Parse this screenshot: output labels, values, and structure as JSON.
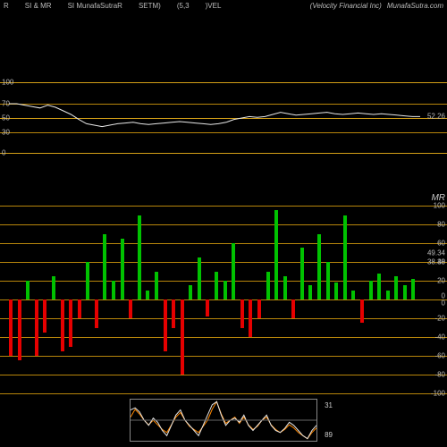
{
  "header": {
    "left": [
      "R",
      "SI & MR",
      "SI MunafaSutraR",
      "SETM)",
      "(5,3",
      ")VEL"
    ],
    "right": [
      "(Velocity Financial Inc)",
      "MunafaSutra.com"
    ]
  },
  "rsi": {
    "ylim": [
      0,
      100
    ],
    "ticks": [
      0,
      30,
      50,
      70,
      100
    ],
    "value_right": "52.26",
    "line_color": "#e8e8e8",
    "horizon_colors": {
      "outer": "#d4a017",
      "mid": "#b8860b"
    },
    "points": [
      70,
      70,
      68,
      66,
      64,
      68,
      65,
      60,
      55,
      48,
      42,
      40,
      38,
      40,
      42,
      43,
      44,
      42,
      41,
      42,
      43,
      44,
      45,
      44,
      43,
      42,
      41,
      42,
      44,
      48,
      50,
      52,
      51,
      52,
      55,
      58,
      56,
      54,
      55,
      56,
      57,
      58,
      56,
      55,
      56,
      57,
      56,
      55,
      56,
      55,
      54,
      53,
      52,
      52
    ]
  },
  "mr": {
    "label": "MR",
    "value_right_top": "49.34",
    "value_right_btm": "38.38",
    "ylim": [
      -100,
      100
    ],
    "ticks": [
      -100,
      -80,
      -60,
      -40,
      -20,
      0,
      20,
      40,
      60,
      80,
      100
    ],
    "axis_color": "#b8860b",
    "pos_color": "#00c200",
    "neg_color": "#e60000",
    "zero_tick_right": [
      "0",
      "0"
    ],
    "bars": [
      -60,
      -65,
      20,
      -60,
      -35,
      25,
      -55,
      -50,
      -20,
      40,
      -30,
      70,
      20,
      65,
      -20,
      90,
      10,
      30,
      -55,
      -30,
      -80,
      15,
      45,
      -18,
      30,
      20,
      60,
      -30,
      -40,
      -20,
      30,
      95,
      25,
      -20,
      55,
      15,
      70,
      40,
      18,
      90,
      10,
      -25,
      20,
      28,
      10,
      25,
      15,
      22
    ]
  },
  "mini": {
    "right_top": "31",
    "right_btm": "89",
    "border_color": "#888888",
    "line1_color": "#e8e8e8",
    "line2_color": "#ff8800",
    "line1": [
      70,
      72,
      68,
      60,
      55,
      62,
      58,
      50,
      45,
      55,
      65,
      70,
      60,
      55,
      50,
      45,
      55,
      65,
      75,
      78,
      65,
      55,
      60,
      62,
      58,
      65,
      55,
      50,
      55,
      60,
      65,
      55,
      50,
      48,
      52,
      58,
      55,
      50,
      45,
      42,
      50,
      55
    ],
    "line2": [
      60,
      65,
      62,
      58,
      55,
      58,
      55,
      52,
      50,
      55,
      60,
      63,
      58,
      54,
      52,
      50,
      54,
      58,
      65,
      70,
      62,
      56,
      58,
      60,
      56,
      60,
      55,
      52,
      54,
      58,
      60,
      55,
      52,
      50,
      52,
      55,
      53,
      50,
      48,
      46,
      50,
      53
    ]
  }
}
